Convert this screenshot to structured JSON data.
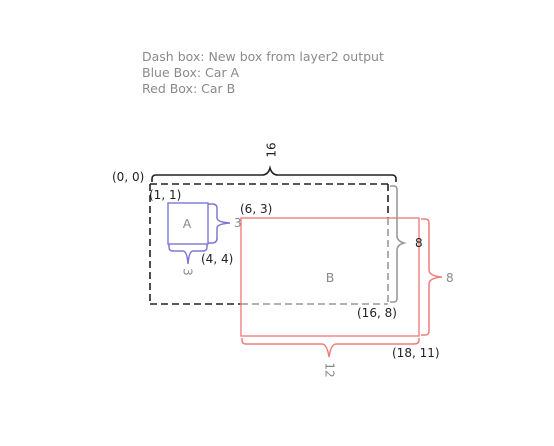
{
  "legend": {
    "dash": "Dash box: New box from layer2 output",
    "blue": "Blue Box: Car A",
    "red": "Red Box: Car B"
  },
  "dash_box": {
    "top_left": "(0, 0)",
    "bottom_right": "(16, 8)",
    "width": "16",
    "height": "8"
  },
  "blue_box": {
    "name": "A",
    "top_left": "(1, 1)",
    "bottom_right": "(4, 4)",
    "width": "3",
    "height": "3"
  },
  "red_box": {
    "name": "B",
    "top_left": "(6, 3)",
    "bottom_right": "(18, 11)",
    "width": "12",
    "height": "8"
  },
  "colors": {
    "dash_dark": "#222222",
    "dash_light": "#999999",
    "blue": "#7b78d8",
    "red": "#ef7f7f",
    "label": "#8a8a8a"
  }
}
